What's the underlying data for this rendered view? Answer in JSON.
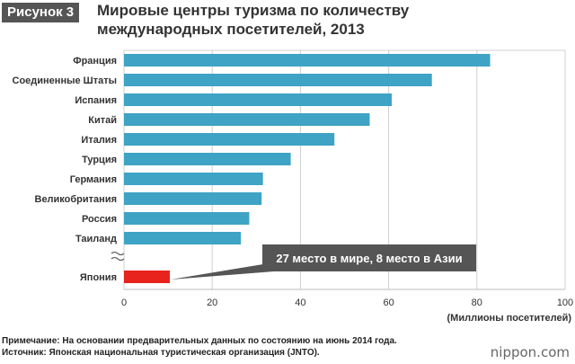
{
  "figure_label": "Рисунок 3",
  "title_line1": "Мировые центры туризма по количеству",
  "title_line2": "международных посетителей, 2013",
  "note": "Примечание: На основании предварительных данных по состоянию на июнь 2014 года.",
  "source": "Источник: Японская национальная туристическая организация (JNTO).",
  "brand": "nippon.com",
  "colors": {
    "bar": "#3ea3c4",
    "highlight": "#e8231e",
    "callout_bg": "#555555"
  },
  "chart_data": {
    "type": "bar",
    "orientation": "horizontal",
    "categories": [
      "Франция",
      "Соединенные Штаты",
      "Испания",
      "Китай",
      "Италия",
      "Турция",
      "Германия",
      "Великобритания",
      "Россия",
      "Таиланд",
      "Япония"
    ],
    "values": [
      83.0,
      69.8,
      60.7,
      55.7,
      47.7,
      37.8,
      31.5,
      31.2,
      28.4,
      26.5,
      10.4
    ],
    "highlight_category": "Япония",
    "axis_break_before": "Япония",
    "xlabel": "(Миллионы посетителей)",
    "xlim": [
      0,
      100
    ],
    "xticks": [
      0,
      20,
      40,
      60,
      80,
      100
    ],
    "grid": true,
    "annotation": "27 место в мире, 8 место в Азии"
  }
}
